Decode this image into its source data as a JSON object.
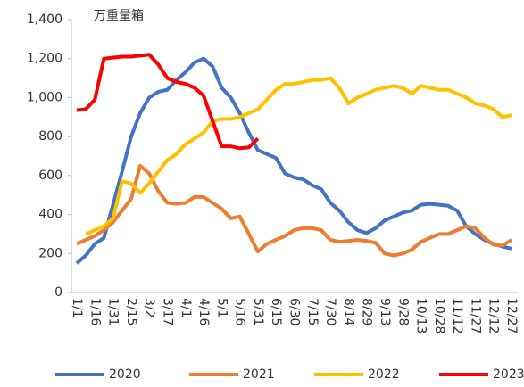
{
  "chart_data": {
    "type": "line",
    "annotation": "万重量箱",
    "categories": [
      "1/1",
      null,
      "1/16",
      null,
      "1/31",
      null,
      "2/15",
      null,
      "3/2",
      null,
      "3/17",
      null,
      "4/1",
      null,
      "4/16",
      null,
      "5/1",
      null,
      "5/16",
      null,
      "5/31",
      null,
      "6/15",
      null,
      "6/30",
      null,
      "7/15",
      null,
      "7/30",
      null,
      "8/14",
      null,
      "8/29",
      null,
      "9/13",
      null,
      "9/28",
      null,
      "10/13",
      null,
      "10/28",
      null,
      "11/12",
      null,
      "11/27",
      null,
      "12/12",
      null,
      "12/27"
    ],
    "series": [
      {
        "name": "2020",
        "color": "#4472c4",
        "values": [
          150,
          190,
          250,
          280,
          450,
          620,
          800,
          920,
          1000,
          1030,
          1040,
          1090,
          1130,
          1180,
          1200,
          1160,
          1050,
          1000,
          920,
          820,
          730,
          710,
          690,
          610,
          590,
          580,
          550,
          530,
          460,
          420,
          360,
          320,
          305,
          330,
          370,
          390,
          410,
          420,
          450,
          455,
          450,
          445,
          420,
          340,
          300,
          270,
          250,
          235,
          225
        ]
      },
      {
        "name": "2021",
        "color": "#ed7d31",
        "values": [
          250,
          270,
          290,
          320,
          360,
          420,
          480,
          650,
          610,
          520,
          460,
          455,
          460,
          490,
          490,
          460,
          430,
          380,
          390,
          300,
          210,
          250,
          270,
          290,
          320,
          330,
          330,
          320,
          270,
          260,
          265,
          270,
          265,
          255,
          200,
          190,
          200,
          220,
          260,
          280,
          300,
          300,
          320,
          340,
          330,
          280,
          245,
          240,
          270
        ]
      },
      {
        "name": "2022",
        "color": "#ffc000",
        "values": [
          null,
          300,
          320,
          340,
          380,
          570,
          560,
          510,
          560,
          620,
          680,
          710,
          760,
          790,
          820,
          880,
          890,
          890,
          900,
          920,
          940,
          990,
          1040,
          1070,
          1070,
          1080,
          1090,
          1090,
          1100,
          1050,
          970,
          1000,
          1020,
          1040,
          1050,
          1060,
          1050,
          1020,
          1060,
          1050,
          1040,
          1040,
          1020,
          1000,
          970,
          960,
          940,
          900,
          910
        ]
      },
      {
        "name": "2023",
        "color": "#ff0000",
        "values": [
          935,
          940,
          990,
          1200,
          1205,
          1210,
          1210,
          1215,
          1220,
          1170,
          1100,
          1080,
          1070,
          1050,
          1010,
          880,
          750,
          750,
          740,
          745,
          790,
          null,
          null,
          null,
          null,
          null,
          null,
          null,
          null,
          null,
          null,
          null,
          null,
          null,
          null,
          null,
          null,
          null,
          null,
          null,
          null,
          null,
          null,
          null,
          null,
          null,
          null,
          null,
          null
        ]
      }
    ],
    "ylim": [
      0,
      1400
    ],
    "yticks": [
      0,
      200,
      400,
      600,
      800,
      {
        "value": 1000,
        "label": "1,000"
      },
      {
        "value": 1200,
        "label": "1,200"
      },
      {
        "value": 1400,
        "label": "1,400"
      }
    ]
  }
}
